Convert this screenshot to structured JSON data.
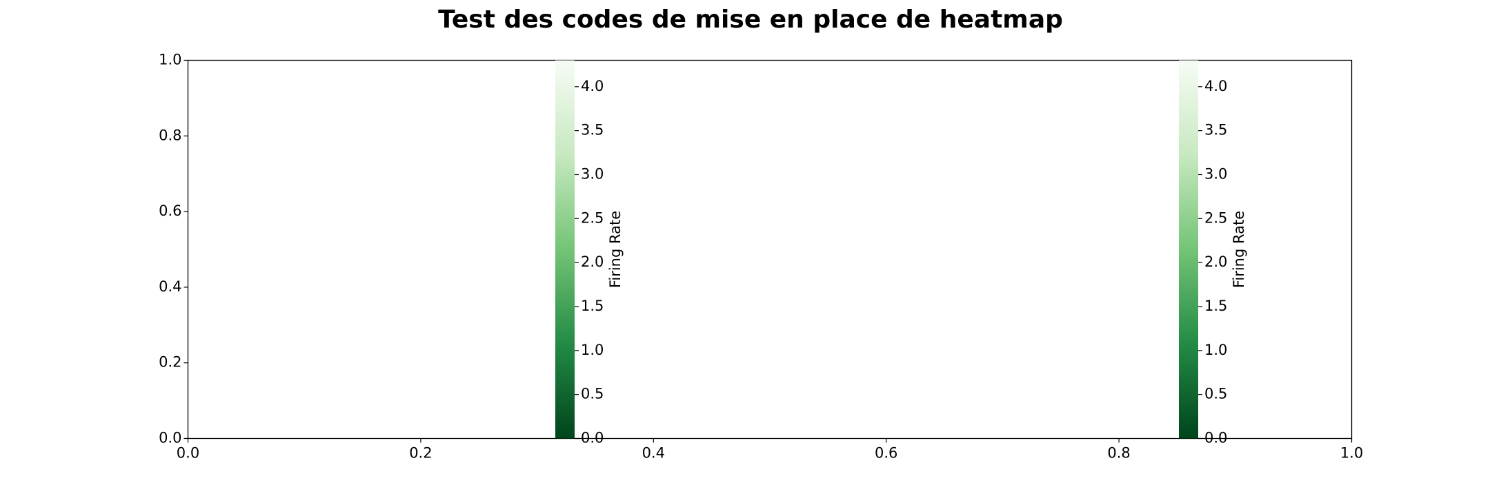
{
  "chart_data": {
    "type": "heatmap",
    "title": "Test des codes de mise en place de heatmap",
    "xlabel": "",
    "ylabel": "",
    "xlim": [
      0.0,
      1.0
    ],
    "ylim": [
      0.0,
      1.0
    ],
    "xticks": [
      "0.0",
      "0.2",
      "0.4",
      "0.6",
      "0.8",
      "1.0"
    ],
    "yticks": [
      "0.0",
      "0.2",
      "0.4",
      "0.6",
      "0.8",
      "1.0"
    ],
    "grid": false,
    "colorbars": [
      {
        "label": "Firing Rate",
        "colormap": "Greens_r",
        "range": [
          0.0,
          4.3
        ],
        "ticks": [
          "0.0",
          "0.5",
          "1.0",
          "1.5",
          "2.0",
          "2.5",
          "3.0",
          "3.5",
          "4.0"
        ]
      },
      {
        "label": "Firing Rate",
        "colormap": "Greens_r",
        "range": [
          0.0,
          4.3
        ],
        "ticks": [
          "0.0",
          "0.5",
          "1.0",
          "1.5",
          "2.0",
          "2.5",
          "3.0",
          "3.5",
          "4.0"
        ]
      }
    ],
    "colors": {
      "cmap_low": "#00441b",
      "cmap_mid_low": "#238b45",
      "cmap_mid": "#74c476",
      "cmap_mid_high": "#c7e9c0",
      "cmap_high": "#f7fcf5",
      "axes": "#000000",
      "background": "#ffffff"
    }
  }
}
